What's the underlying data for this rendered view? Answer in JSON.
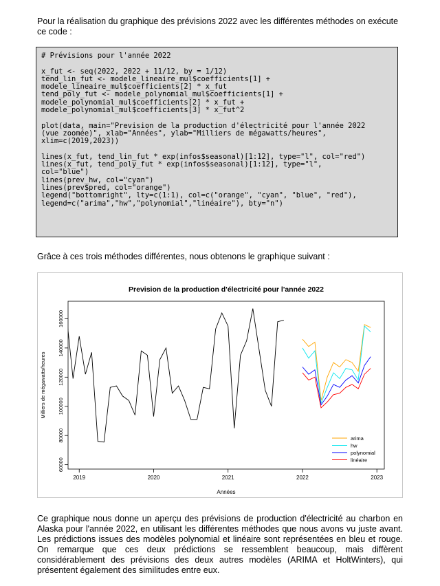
{
  "intro_text": "Pour la réalisation du graphique des prévisions 2022 avec les différentes méthodes on exécute ce code :",
  "code_lines": [
    "# Prévisions pour l'année 2022",
    "",
    "x_fut <- seq(2022, 2022 + 11/12, by = 1/12)",
    "tend_lin_fut <- modele_lineaire_mul$coefficients[1] +",
    "modele_lineaire_mul$coefficients[2] * x_fut",
    "tend_poly_fut <- modele_polynomial_mul$coefficients[1] +",
    "modele_polynomial_mul$coefficients[2] * x_fut +",
    "modele_polynomial_mul$coefficients[3] * x_fut^2",
    "",
    "plot(data, main=\"Prevision de la production d'électricité pour l'année 2022",
    "(vue zoomée)\", xlab=\"Années\", ylab=\"Milliers de mégawatts/heures\",",
    "xlim=c(2019,2023))",
    "",
    "lines(x_fut, tend_lin_fut * exp(infos$seasonal)[1:12], type=\"l\", col=\"red\")",
    "lines(x_fut, tend_poly_fut * exp(infos$seasonal)[1:12], type=\"l\",",
    "col=\"blue\")",
    "lines(prev_hw, col=\"cyan\")",
    "lines(prev$pred, col=\"orange\")",
    "legend(\"bottomright\", lty=c(1:1), col=c(\"orange\", \"cyan\", \"blue\", \"red\"),",
    "legend=c(\"arima\",\"hw\",\"polynomial\",\"linéaire\"), bty=\"n\")"
  ],
  "mid_text": "Grâce à ces trois méthodes différentes, nous obtenons le graphique suivant :",
  "outro_text": "Ce graphique nous donne un aperçu des prévisions de production d'électricité au charbon en Alaska pour l'année 2022, en utilisant les différentes méthodes que nous avons vu juste avant. Les prédictions issues des modèles polynomial et linéaire sont représentées en bleu et rouge. On remarque que ces deux prédictions se ressemblent beaucoup, mais diffèrent considérablement des prévisions des deux autres modèles (ARIMA et HoltWinters), qui présentent également des similitudes entre eux.",
  "chart_data": {
    "type": "line",
    "title": "Prevision de la production d'électricité pour l'année 2022",
    "xlabel": "Années",
    "ylabel": "Milliers de mégawatts/heures",
    "xlim": [
      2018.85,
      2023.1
    ],
    "ylim": [
      57000,
      172000
    ],
    "x_ticks": [
      2019,
      2020,
      2021,
      2022,
      2023
    ],
    "y_ticks": [
      60000,
      80000,
      100000,
      120000,
      140000,
      160000
    ],
    "legend_position": "bottom-right",
    "history": {
      "name": "data",
      "color": "#000000",
      "start": [
        2018,
        11
      ],
      "values": [
        160000,
        119000,
        148000,
        122000,
        137000,
        76000,
        75500,
        113000,
        114000,
        107000,
        104000,
        94000,
        138000,
        135000,
        93000,
        132000,
        140000,
        109000,
        114000,
        104000,
        91000,
        91000,
        113000,
        112000,
        153000,
        164000,
        155000,
        85000,
        135000,
        145000,
        167000,
        139000,
        111000,
        100000,
        158000,
        159000
      ]
    },
    "forecast_x": [
      "2022-01",
      "2022-02",
      "2022-03",
      "2022-04",
      "2022-05",
      "2022-06",
      "2022-07",
      "2022-08",
      "2022-09",
      "2022-10",
      "2022-11",
      "2022-12"
    ],
    "series": [
      {
        "name": "arima",
        "color": "#ffa500",
        "values": [
          146000,
          141000,
          144000,
          104000,
          120000,
          130000,
          127000,
          132000,
          130000,
          124000,
          156000,
          154000
        ]
      },
      {
        "name": "hw",
        "color": "#00e5ee",
        "values": [
          140000,
          133000,
          138000,
          102000,
          113000,
          123000,
          119000,
          126000,
          125000,
          118000,
          155000,
          151000
        ]
      },
      {
        "name": "polynomial",
        "color": "#0000ff",
        "values": [
          127000,
          122000,
          125000,
          101000,
          107000,
          115000,
          113000,
          118000,
          121000,
          116000,
          128000,
          134000
        ]
      },
      {
        "name": "linéaire",
        "color": "#ff0000",
        "values": [
          123000,
          118000,
          120000,
          99000,
          103000,
          108000,
          109000,
          113000,
          115000,
          112000,
          122000,
          126000
        ]
      }
    ]
  }
}
